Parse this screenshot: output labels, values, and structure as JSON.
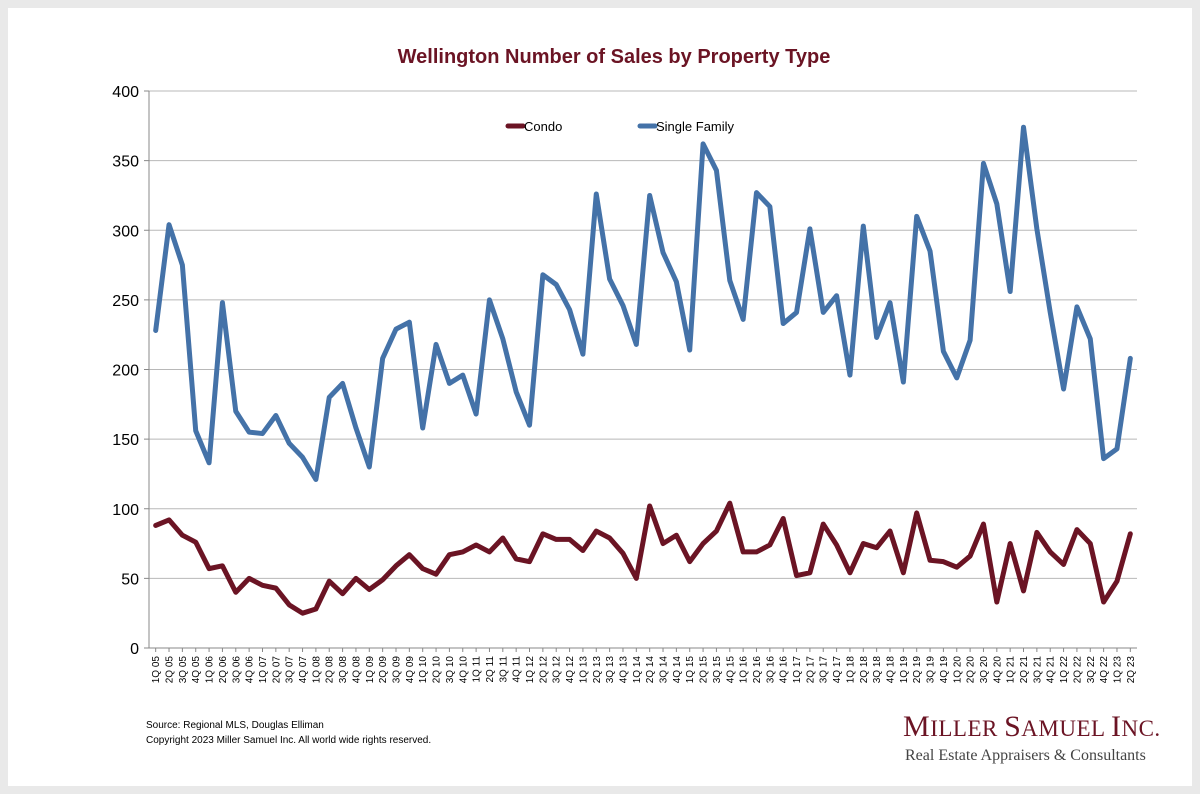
{
  "colors": {
    "condo": "#6b1424",
    "single_family": "#4472a8",
    "title": "#6b1424",
    "grid": "#b8b8b8"
  },
  "footer": {
    "source": "Source: Regional MLS, Douglas Elliman",
    "copyright": "Copyright 2023 Miller Samuel Inc.  All world wide rights reserved."
  },
  "logo": {
    "name_first_letter": "M",
    "name_rest_1": "ILLER ",
    "name_second_letter": "S",
    "name_rest_2": "AMUEL ",
    "name_third_letter": "I",
    "name_rest_3": "NC.",
    "tagline": "Real Estate Appraisers & Consultants"
  },
  "chart_data": {
    "type": "line",
    "title": "Wellington Number of Sales by Property Type",
    "xlabel": "",
    "ylabel": "",
    "ylim": [
      0,
      400
    ],
    "yticks": [
      0,
      50,
      100,
      150,
      200,
      250,
      300,
      350,
      400
    ],
    "grid": "horizontal",
    "legend_position": "top-center",
    "x": [
      "1Q 05",
      "2Q 05",
      "3Q 05",
      "4Q 05",
      "1Q 06",
      "2Q 06",
      "3Q 06",
      "4Q 06",
      "1Q 07",
      "2Q 07",
      "3Q 07",
      "4Q 07",
      "1Q 08",
      "2Q 08",
      "3Q 08",
      "4Q 08",
      "1Q 09",
      "2Q 09",
      "3Q 09",
      "4Q 09",
      "1Q 10",
      "2Q 10",
      "3Q 10",
      "4Q 10",
      "1Q 11",
      "2Q 11",
      "3Q 11",
      "4Q 11",
      "1Q 12",
      "2Q 12",
      "3Q 12",
      "4Q 12",
      "1Q 13",
      "2Q 13",
      "3Q 13",
      "4Q 13",
      "1Q 14",
      "2Q 14",
      "3Q 14",
      "4Q 14",
      "1Q 15",
      "2Q 15",
      "3Q 15",
      "4Q 15",
      "1Q 16",
      "2Q 16",
      "3Q 16",
      "4Q 16",
      "1Q 17",
      "2Q 17",
      "3Q 17",
      "4Q 17",
      "1Q 18",
      "2Q 18",
      "3Q 18",
      "4Q 18",
      "1Q 19",
      "2Q 19",
      "3Q 19",
      "4Q 19",
      "1Q 20",
      "2Q 20",
      "3Q 20",
      "4Q 20",
      "1Q 21",
      "2Q 21",
      "3Q 21",
      "4Q 21",
      "1Q 22",
      "2Q 22",
      "3Q 22",
      "4Q 22",
      "1Q 23",
      "2Q 23"
    ],
    "x_labels_shown": [
      "1Q 05",
      "2Q 05",
      "3Q 05",
      "4Q 05",
      "1Q 06",
      "2Q 06",
      "3Q 06",
      "4Q 06",
      "1Q 07",
      "2Q 07",
      "3Q 07",
      "4Q 07",
      "1Q 08",
      "2Q 08",
      "3Q 08",
      "4Q 08",
      "1Q 09",
      "2Q 09",
      "3Q 09",
      "4Q 09",
      "1Q 10",
      "2Q 10",
      "3Q 10",
      "4Q 10",
      "1Q 11",
      "2Q 11",
      "3Q 11",
      "4Q 11",
      "1Q 12",
      "2Q 12",
      "3Q 12",
      "4Q 12",
      "1Q 13",
      "2Q 13",
      "3Q 13",
      "4Q 13",
      "1Q 14",
      "2Q 14",
      "3Q 14",
      "4Q 14",
      "1Q 15",
      "2Q 15",
      "3Q 15",
      "4Q 15",
      "1Q 16",
      "2Q 16",
      "3Q 16",
      "4Q 16",
      "1Q 17",
      "2Q 17",
      "3Q 17",
      "4Q 17",
      "1Q 18",
      "2Q 18",
      "3Q 18",
      "4Q 18",
      "1Q 19",
      "2Q 19",
      "3Q 19",
      "4Q 19",
      "1Q 20",
      "2Q 20",
      "3Q 20",
      "4Q 20",
      "1Q 21",
      "2Q 21",
      "3Q 21",
      "4Q 21",
      "1Q 22",
      "2Q 22",
      "3Q 22",
      "4Q 22",
      "1Q 23",
      "2Q 23"
    ],
    "series": [
      {
        "name": "Condo",
        "values": [
          88,
          92,
          81,
          76,
          57,
          59,
          40,
          50,
          45,
          43,
          31,
          25,
          28,
          48,
          39,
          50,
          42,
          49,
          59,
          67,
          57,
          53,
          67,
          69,
          74,
          69,
          79,
          64,
          62,
          82,
          78,
          78,
          70,
          84,
          79,
          68,
          50,
          102,
          75,
          81,
          62,
          75,
          84,
          104,
          69,
          69,
          74,
          93,
          52,
          54,
          89,
          74,
          54,
          75,
          72,
          84,
          54,
          97,
          63,
          62,
          58,
          66,
          89,
          33,
          75,
          41,
          83,
          69,
          60,
          85,
          75,
          33,
          48,
          82
        ]
      },
      {
        "name": "Single Family",
        "values": [
          228,
          304,
          275,
          156,
          133,
          248,
          170,
          155,
          154,
          167,
          147,
          137,
          121,
          180,
          190,
          158,
          130,
          208,
          229,
          234,
          158,
          218,
          190,
          196,
          168,
          250,
          222,
          184,
          160,
          268,
          261,
          243,
          211,
          326,
          265,
          246,
          218,
          325,
          284,
          263,
          214,
          362,
          343,
          264,
          236,
          327,
          317,
          233,
          241,
          301,
          241,
          253,
          196,
          303,
          223,
          248,
          191,
          310,
          285,
          213,
          194,
          221,
          348,
          319,
          256,
          374,
          301,
          241,
          186,
          245,
          222,
          136,
          143,
          208
        ]
      }
    ]
  }
}
